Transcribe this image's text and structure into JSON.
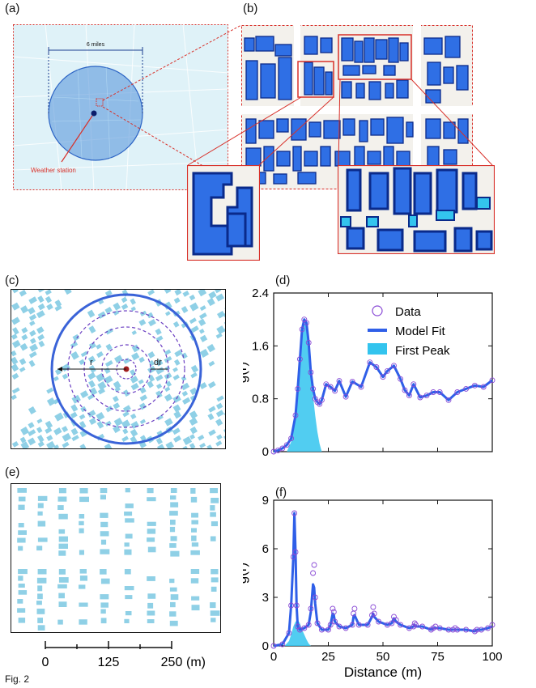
{
  "figure": {
    "caption": "Fig. 2",
    "panels": {
      "a": "(a)",
      "b": "(b)",
      "c": "(c)",
      "d": "(d)",
      "e": "(e)",
      "f": "(f)"
    }
  },
  "panel_a": {
    "distance_label": "6 miles",
    "station_label": "Weather station"
  },
  "panel_c": {
    "r_label": "r",
    "dr_label": "dr"
  },
  "panel_e": {
    "scale_ticks": [
      "0",
      "125",
      "250"
    ],
    "scale_unit": "(m)"
  },
  "colors": {
    "map_water": "#bfe6f3",
    "building_fill": "#2f6fe5",
    "building_edge": "#0a2a8a",
    "light_building": "#8fd0e6",
    "red_accent": "#d8312a",
    "data_marker": "#8a4bd6",
    "fit_line": "#2f5fe8",
    "first_peak": "#33c4ee"
  },
  "chart_data": [
    {
      "type": "line",
      "panel": "(d)",
      "xlabel": "",
      "ylabel": "g(r)",
      "xlim": [
        0,
        100
      ],
      "ylim": [
        0,
        2.4
      ],
      "yticks": [
        "0",
        "0.8",
        "1.6",
        "2.4"
      ],
      "legend": [
        "Data",
        "Model Fit",
        "First Peak"
      ],
      "legend_position": "top-right",
      "series": [
        {
          "name": "Data",
          "style": "markers",
          "x": [
            0,
            2,
            4,
            6,
            8,
            10,
            11,
            12,
            13,
            14,
            15,
            16,
            17,
            18,
            19,
            20,
            21,
            22,
            24,
            26,
            28,
            30,
            33,
            36,
            40,
            44,
            47,
            50,
            52,
            55,
            58,
            60,
            62,
            64,
            67,
            70,
            73,
            76,
            80,
            84,
            88,
            92,
            96,
            100
          ],
          "y": [
            0,
            0.02,
            0.05,
            0.1,
            0.2,
            0.55,
            0.95,
            1.4,
            1.85,
            2.0,
            1.95,
            1.65,
            1.2,
            0.95,
            0.8,
            0.75,
            0.72,
            0.78,
            1.02,
            0.98,
            0.92,
            1.07,
            0.83,
            1.06,
            0.98,
            1.35,
            1.28,
            1.13,
            1.22,
            1.3,
            1.1,
            0.93,
            0.85,
            1.02,
            0.82,
            0.85,
            0.9,
            0.9,
            0.78,
            0.9,
            0.95,
            1.0,
            0.98,
            1.08
          ]
        },
        {
          "name": "Model Fit",
          "style": "line",
          "x": [
            0,
            2,
            4,
            6,
            8,
            10,
            11,
            12,
            13,
            14,
            15,
            16,
            17,
            18,
            19,
            20,
            21,
            22,
            24,
            26,
            28,
            30,
            33,
            36,
            40,
            44,
            47,
            50,
            52,
            55,
            58,
            60,
            62,
            64,
            67,
            70,
            73,
            76,
            80,
            84,
            88,
            92,
            96,
            100
          ],
          "y": [
            0,
            0.02,
            0.05,
            0.1,
            0.2,
            0.55,
            0.95,
            1.4,
            1.85,
            2.0,
            1.95,
            1.65,
            1.2,
            0.95,
            0.8,
            0.75,
            0.72,
            0.78,
            1.02,
            0.98,
            0.92,
            1.07,
            0.83,
            1.06,
            0.98,
            1.35,
            1.28,
            1.13,
            1.22,
            1.3,
            1.1,
            0.93,
            0.85,
            1.02,
            0.82,
            0.85,
            0.9,
            0.9,
            0.78,
            0.9,
            0.95,
            1.0,
            0.98,
            1.08
          ]
        },
        {
          "name": "First Peak",
          "style": "area",
          "x": [
            6,
            8,
            10,
            11,
            12,
            13,
            14,
            15,
            16,
            17,
            18,
            19,
            20,
            21,
            22
          ],
          "y": [
            0,
            0.15,
            0.5,
            0.9,
            1.35,
            1.8,
            1.98,
            1.95,
            1.65,
            1.2,
            0.85,
            0.55,
            0.3,
            0.12,
            0
          ]
        }
      ]
    },
    {
      "type": "line",
      "panel": "(f)",
      "xlabel": "Distance (m)",
      "ylabel": "g(r)",
      "xlim": [
        0,
        100
      ],
      "ylim": [
        0,
        9
      ],
      "xticks": [
        "0",
        "25",
        "50",
        "75",
        "100"
      ],
      "yticks": [
        "0",
        "3",
        "6",
        "9"
      ],
      "series": [
        {
          "name": "Data",
          "style": "markers",
          "x": [
            0,
            4,
            7,
            8,
            9,
            9.5,
            10,
            10.5,
            11,
            12,
            14,
            16,
            17,
            18,
            18.5,
            19,
            20,
            22,
            25,
            26,
            27,
            27.5,
            28,
            30,
            33,
            36,
            36.5,
            37,
            39,
            43,
            45,
            45.5,
            46,
            48,
            52,
            54,
            55,
            56,
            58,
            62,
            64,
            64.5,
            65,
            68,
            72,
            73,
            74,
            76,
            80,
            82,
            83,
            84,
            88,
            92,
            93,
            95,
            98,
            100
          ],
          "y": [
            0,
            0.1,
            0.8,
            2.5,
            5.5,
            8.2,
            5.8,
            2.5,
            1.2,
            1.0,
            1.1,
            1.3,
            2.3,
            4.5,
            5.0,
            3.0,
            1.4,
            1.0,
            1.0,
            1.3,
            2.3,
            2.1,
            1.5,
            1.2,
            1.1,
            1.3,
            2.0,
            2.3,
            1.3,
            1.3,
            1.9,
            2.4,
            2.0,
            1.5,
            1.3,
            1.4,
            1.8,
            1.6,
            1.3,
            1.1,
            1.2,
            1.4,
            1.3,
            1.2,
            1.0,
            1.1,
            1.2,
            1.1,
            1.0,
            1.0,
            1.1,
            1.0,
            1.0,
            0.9,
            1.0,
            1.0,
            1.1,
            1.3
          ]
        },
        {
          "name": "Model Fit",
          "style": "line",
          "x": [
            0,
            4,
            7,
            8,
            9,
            9.5,
            10,
            10.5,
            11,
            12,
            14,
            16,
            17,
            18,
            18.5,
            19,
            20,
            22,
            25,
            26,
            27,
            27.5,
            28,
            30,
            33,
            36,
            36.5,
            37,
            39,
            43,
            45,
            45.5,
            46,
            48,
            52,
            54,
            55,
            56,
            58,
            62,
            64,
            64.5,
            65,
            68,
            72,
            73,
            74,
            76,
            80,
            82,
            83,
            84,
            88,
            92,
            93,
            95,
            98,
            100
          ],
          "y": [
            0,
            0.1,
            0.8,
            2.5,
            5.5,
            8.2,
            5.8,
            2.5,
            1.2,
            1.0,
            1.1,
            1.3,
            2.1,
            3.8,
            3.6,
            2.6,
            1.4,
            1.0,
            1.0,
            1.3,
            2.0,
            1.9,
            1.5,
            1.2,
            1.1,
            1.3,
            1.8,
            1.9,
            1.3,
            1.3,
            1.8,
            2.0,
            1.8,
            1.5,
            1.3,
            1.4,
            1.7,
            1.5,
            1.3,
            1.1,
            1.2,
            1.3,
            1.2,
            1.2,
            1.0,
            1.1,
            1.1,
            1.1,
            1.0,
            1.0,
            1.0,
            1.0,
            1.0,
            0.9,
            1.0,
            1.0,
            1.1,
            1.2
          ]
        },
        {
          "name": "First Peak",
          "style": "area",
          "x": [
            5,
            7,
            8,
            9,
            10,
            11,
            12,
            13,
            14,
            15,
            16,
            17
          ],
          "y": [
            0,
            0.3,
            0.7,
            1.2,
            1.5,
            1.6,
            1.4,
            1.0,
            0.7,
            0.4,
            0.15,
            0
          ]
        }
      ]
    }
  ]
}
